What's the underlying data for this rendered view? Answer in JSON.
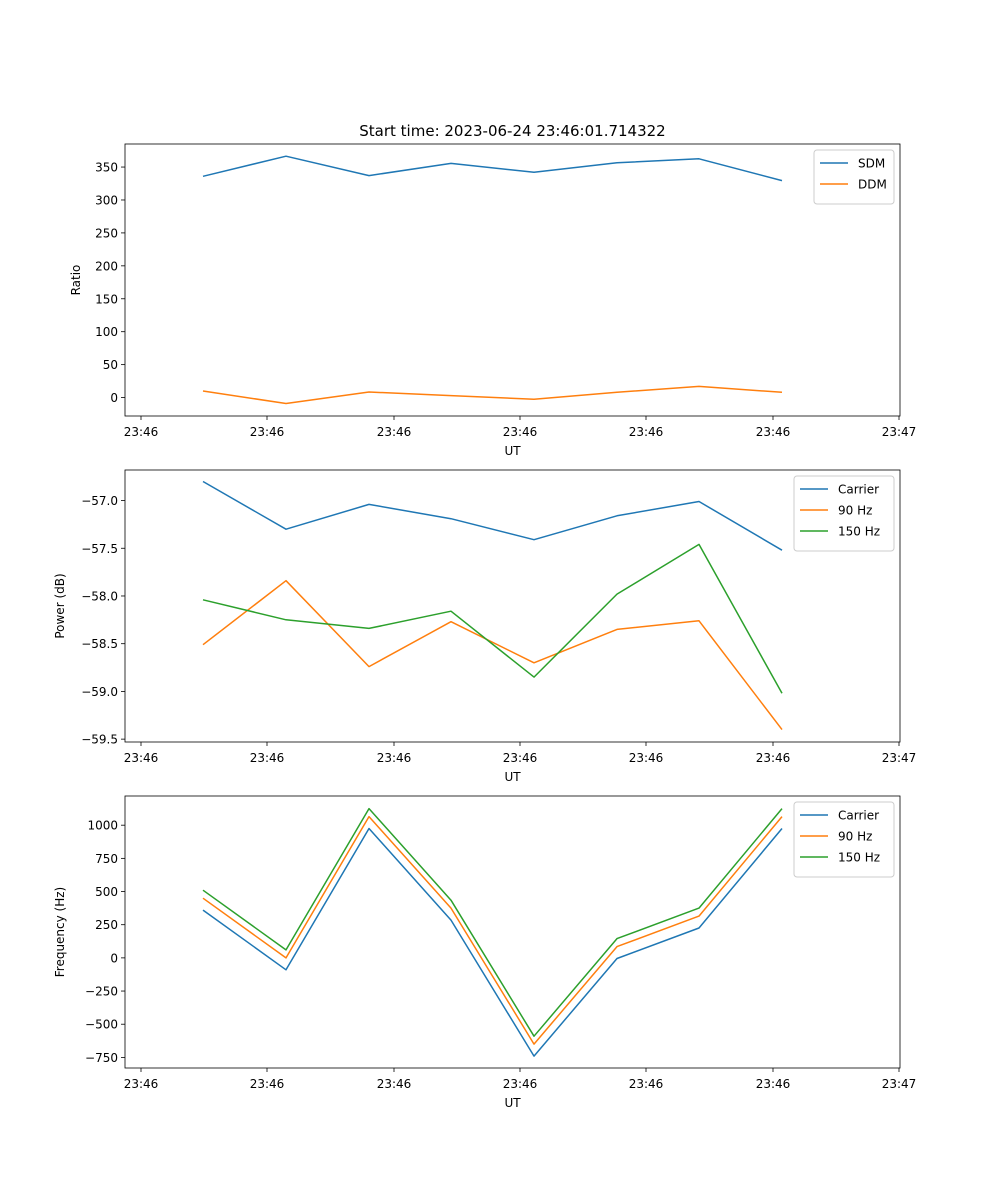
{
  "figure_title": "Start time: 2023-06-24 23:46:01.714322",
  "chart_data": [
    {
      "type": "line",
      "xlabel": "UT",
      "ylabel": "Ratio",
      "x_tick_labels": [
        "23:46",
        "23:46",
        "23:46",
        "23:46",
        "23:46",
        "23:46",
        "23:47"
      ],
      "y_ticks": [
        0,
        50,
        100,
        150,
        200,
        250,
        300,
        350
      ],
      "ylim": [
        -28,
        385
      ],
      "legend_position": "upper right",
      "series": [
        {
          "name": "SDM",
          "color": "#1f77b4",
          "values": [
            336,
            366.5,
            337,
            355.5,
            342,
            356.5,
            362.5,
            329.5
          ]
        },
        {
          "name": "DDM",
          "color": "#ff7f0e",
          "values": [
            10,
            -9,
            8.5,
            3,
            -2.5,
            8,
            17,
            8
          ]
        }
      ]
    },
    {
      "type": "line",
      "xlabel": "UT",
      "ylabel": "Power (dB)",
      "x_tick_labels": [
        "23:46",
        "23:46",
        "23:46",
        "23:46",
        "23:46",
        "23:46",
        "23:47"
      ],
      "y_ticks": [
        -57.0,
        -57.5,
        -58.0,
        -58.5,
        -59.0,
        -59.5
      ],
      "y_tick_labels": [
        "−57.0",
        "−57.5",
        "−58.0",
        "−58.5",
        "−59.0",
        "−59.5"
      ],
      "ylim": [
        -59.53,
        -56.68
      ],
      "legend_position": "upper right",
      "series": [
        {
          "name": "Carrier",
          "color": "#1f77b4",
          "values": [
            -56.8,
            -57.3,
            -57.04,
            -57.19,
            -57.41,
            -57.16,
            -57.01,
            -57.52
          ]
        },
        {
          "name": "90 Hz",
          "color": "#ff7f0e",
          "values": [
            -58.51,
            -57.84,
            -58.74,
            -58.27,
            -58.7,
            -58.35,
            -58.26,
            -59.4
          ]
        },
        {
          "name": "150 Hz",
          "color": "#2ca02c",
          "values": [
            -58.04,
            -58.25,
            -58.34,
            -58.16,
            -58.85,
            -57.98,
            -57.46,
            -59.02
          ]
        }
      ]
    },
    {
      "type": "line",
      "xlabel": "UT",
      "ylabel": "Frequency (Hz)",
      "x_tick_labels": [
        "23:46",
        "23:46",
        "23:46",
        "23:46",
        "23:46",
        "23:46",
        "23:47"
      ],
      "y_ticks": [
        -750,
        -500,
        -250,
        0,
        250,
        500,
        750,
        1000
      ],
      "y_tick_labels": [
        "−750",
        "−500",
        "−250",
        "0",
        "250",
        "500",
        "750",
        "1000"
      ],
      "ylim": [
        -830,
        1220
      ],
      "legend_position": "upper right",
      "series": [
        {
          "name": "Carrier",
          "color": "#1f77b4",
          "values": [
            360,
            -90,
            975,
            285,
            -740,
            -5,
            225,
            975
          ]
        },
        {
          "name": "90 Hz",
          "color": "#ff7f0e",
          "values": [
            450,
            0,
            1065,
            375,
            -650,
            85,
            315,
            1065
          ]
        },
        {
          "name": "150 Hz",
          "color": "#2ca02c",
          "values": [
            510,
            60,
            1125,
            435,
            -590,
            145,
            375,
            1125
          ]
        }
      ]
    }
  ]
}
